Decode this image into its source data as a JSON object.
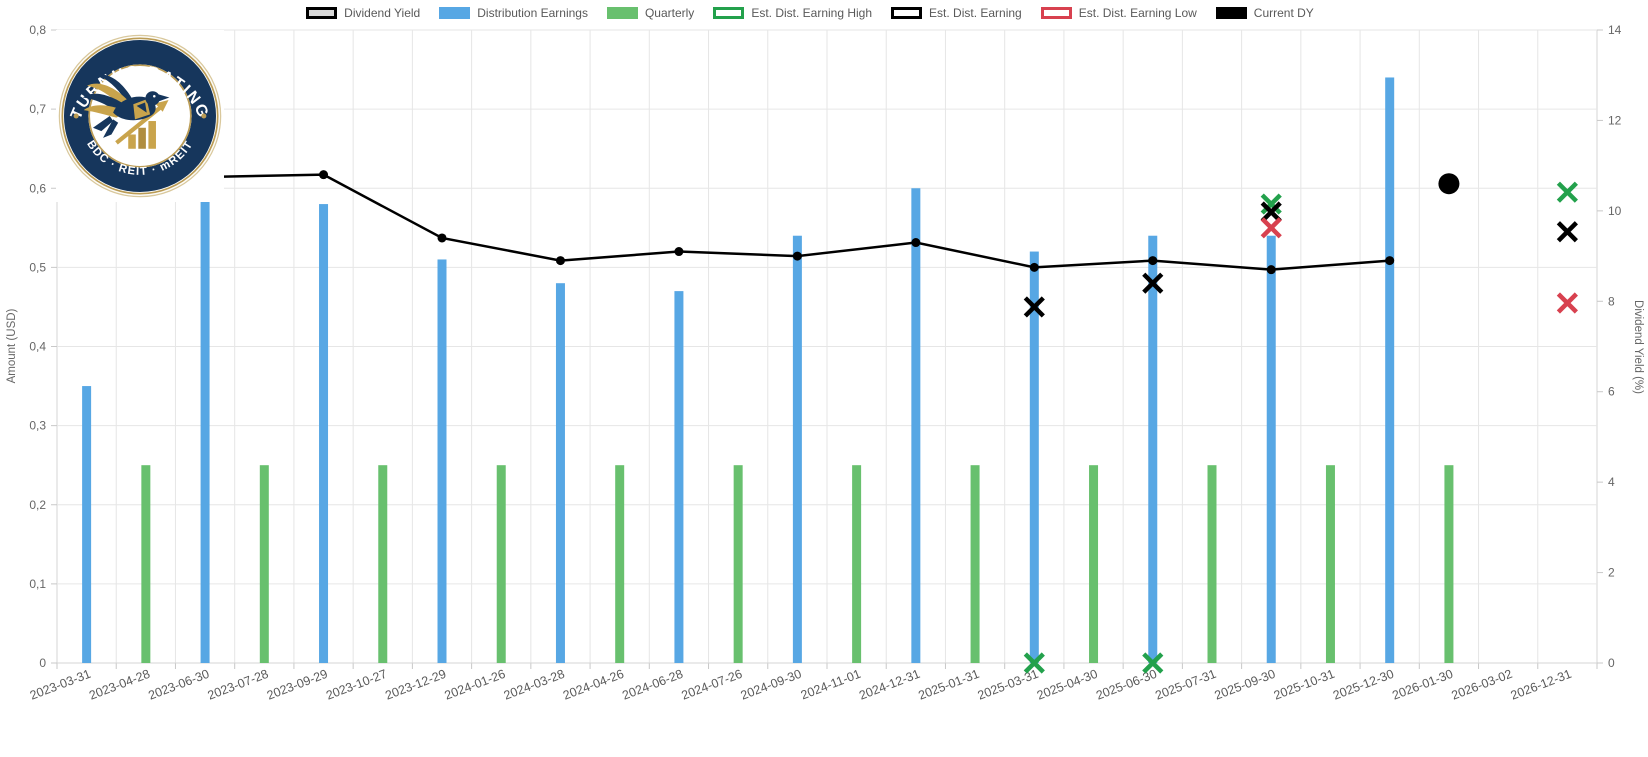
{
  "page": {
    "background": "#ffffff"
  },
  "legend": {
    "items": [
      {
        "label": "Dividend Yield",
        "swatch_fill": "#d9d9d9",
        "swatch_border": "#000000"
      },
      {
        "label": "Distribution Earnings",
        "swatch_fill": "#57a7e4",
        "swatch_border": ""
      },
      {
        "label": "Quarterly",
        "swatch_fill": "#68c06e",
        "swatch_border": ""
      },
      {
        "label": "Est. Dist. Earning High",
        "swatch_fill": "#ffffff",
        "swatch_border": "#23a14c"
      },
      {
        "label": "Est. Dist. Earning",
        "swatch_fill": "#ffffff",
        "swatch_border": "#000000"
      },
      {
        "label": "Est. Dist. Earning Low",
        "swatch_fill": "#ffffff",
        "swatch_border": "#d8414f"
      },
      {
        "label": "Current DY",
        "swatch_fill": "#000000",
        "swatch_border": ""
      }
    ]
  },
  "logo": {
    "arc_top": "STURNUS RATINGS",
    "arc_bottom": "BDC · REIT · mREIT",
    "navy": "#16365c",
    "gold": "#c9a44c"
  },
  "chart_data": {
    "type": "mixed-bar-line-scatter",
    "categories": [
      "2023-03-31",
      "2023-04-28",
      "2023-06-30",
      "2023-07-28",
      "2023-09-29",
      "2023-10-27",
      "2023-12-29",
      "2024-01-26",
      "2024-03-28",
      "2024-04-26",
      "2024-06-28",
      "2024-07-26",
      "2024-09-30",
      "2024-11-01",
      "2024-12-31",
      "2025-01-31",
      "2025-03-31",
      "2025-04-30",
      "2025-06-30",
      "2025-07-31",
      "2025-09-30",
      "2025-10-31",
      "2025-12-30",
      "2026-01-30",
      "2026-03-02",
      "2026-12-31"
    ],
    "left_axis": {
      "title": "Amount (USD)",
      "min": 0,
      "max": 0.8,
      "tick_step": 0.1,
      "tick_labels": [
        "0",
        "0,1",
        "0,2",
        "0,3",
        "0,4",
        "0,5",
        "0,6",
        "0,7",
        "0,8"
      ]
    },
    "right_axis": {
      "title": "Dividend Yield (%)",
      "min": 0,
      "max": 14,
      "tick_step": 2,
      "tick_labels": [
        "0",
        "2",
        "4",
        "6",
        "8",
        "10",
        "12",
        "14"
      ]
    },
    "grid": {
      "show": true,
      "color": "#e6e6e6",
      "axis_line_color": "#d4d4d4",
      "tick_color": "#c8c8c8",
      "tick_text_color": "#666666"
    },
    "series": [
      {
        "name": "Distribution Earnings",
        "type": "bar",
        "axis": "left",
        "color": "#57a7e4",
        "points": {
          "2023-03-31": 0.35,
          "2023-06-30": 0.585,
          "2023-09-29": 0.58,
          "2023-12-29": 0.51,
          "2024-03-28": 0.48,
          "2024-06-28": 0.47,
          "2024-09-30": 0.54,
          "2024-12-31": 0.6,
          "2025-03-31": 0.52,
          "2025-06-30": 0.54,
          "2025-09-30": 0.54,
          "2025-12-30": 0.74
        }
      },
      {
        "name": "Quarterly",
        "type": "bar",
        "axis": "left",
        "color": "#68c06e",
        "points": {
          "2023-04-28": 0.25,
          "2023-07-28": 0.25,
          "2023-10-27": 0.25,
          "2024-01-26": 0.25,
          "2024-04-26": 0.25,
          "2024-07-26": 0.25,
          "2024-11-01": 0.25,
          "2025-01-31": 0.25,
          "2025-04-30": 0.25,
          "2025-07-31": 0.25,
          "2025-10-31": 0.25,
          "2026-01-30": 0.25
        }
      },
      {
        "name": "Dividend Yield",
        "type": "line",
        "axis": "right",
        "color": "#000000",
        "points": {
          "2023-03-31": 10.7,
          "2023-06-30": 10.75,
          "2023-09-29": 10.8,
          "2023-12-29": 9.4,
          "2024-03-28": 8.9,
          "2024-06-28": 9.1,
          "2024-09-30": 9.0,
          "2024-12-31": 9.3,
          "2025-03-31": 8.75,
          "2025-06-30": 8.9,
          "2025-09-30": 8.7,
          "2025-12-30": 8.9
        }
      },
      {
        "name": "Est. Dist. Earning High",
        "type": "x-marker",
        "axis": "left",
        "color": "#23a14c",
        "points": {
          "2025-03-31": 0.0,
          "2025-06-30": 0.0,
          "2025-09-30": 0.58,
          "2026-12-31": 0.595
        }
      },
      {
        "name": "Est. Dist. Earning",
        "type": "x-marker",
        "axis": "left",
        "color": "#000000",
        "points": {
          "2025-03-31": 0.45,
          "2025-06-30": 0.48,
          "2025-09-30": 0.57,
          "2026-12-31": 0.545
        }
      },
      {
        "name": "Est. Dist. Earning Low",
        "type": "x-marker",
        "axis": "left",
        "color": "#d8414f",
        "points": {
          "2025-09-30": 0.55,
          "2026-12-31": 0.455
        }
      },
      {
        "name": "Current DY",
        "type": "big-point",
        "axis": "right",
        "color": "#000000",
        "points": {
          "2026-01-30": 10.6
        }
      }
    ]
  }
}
